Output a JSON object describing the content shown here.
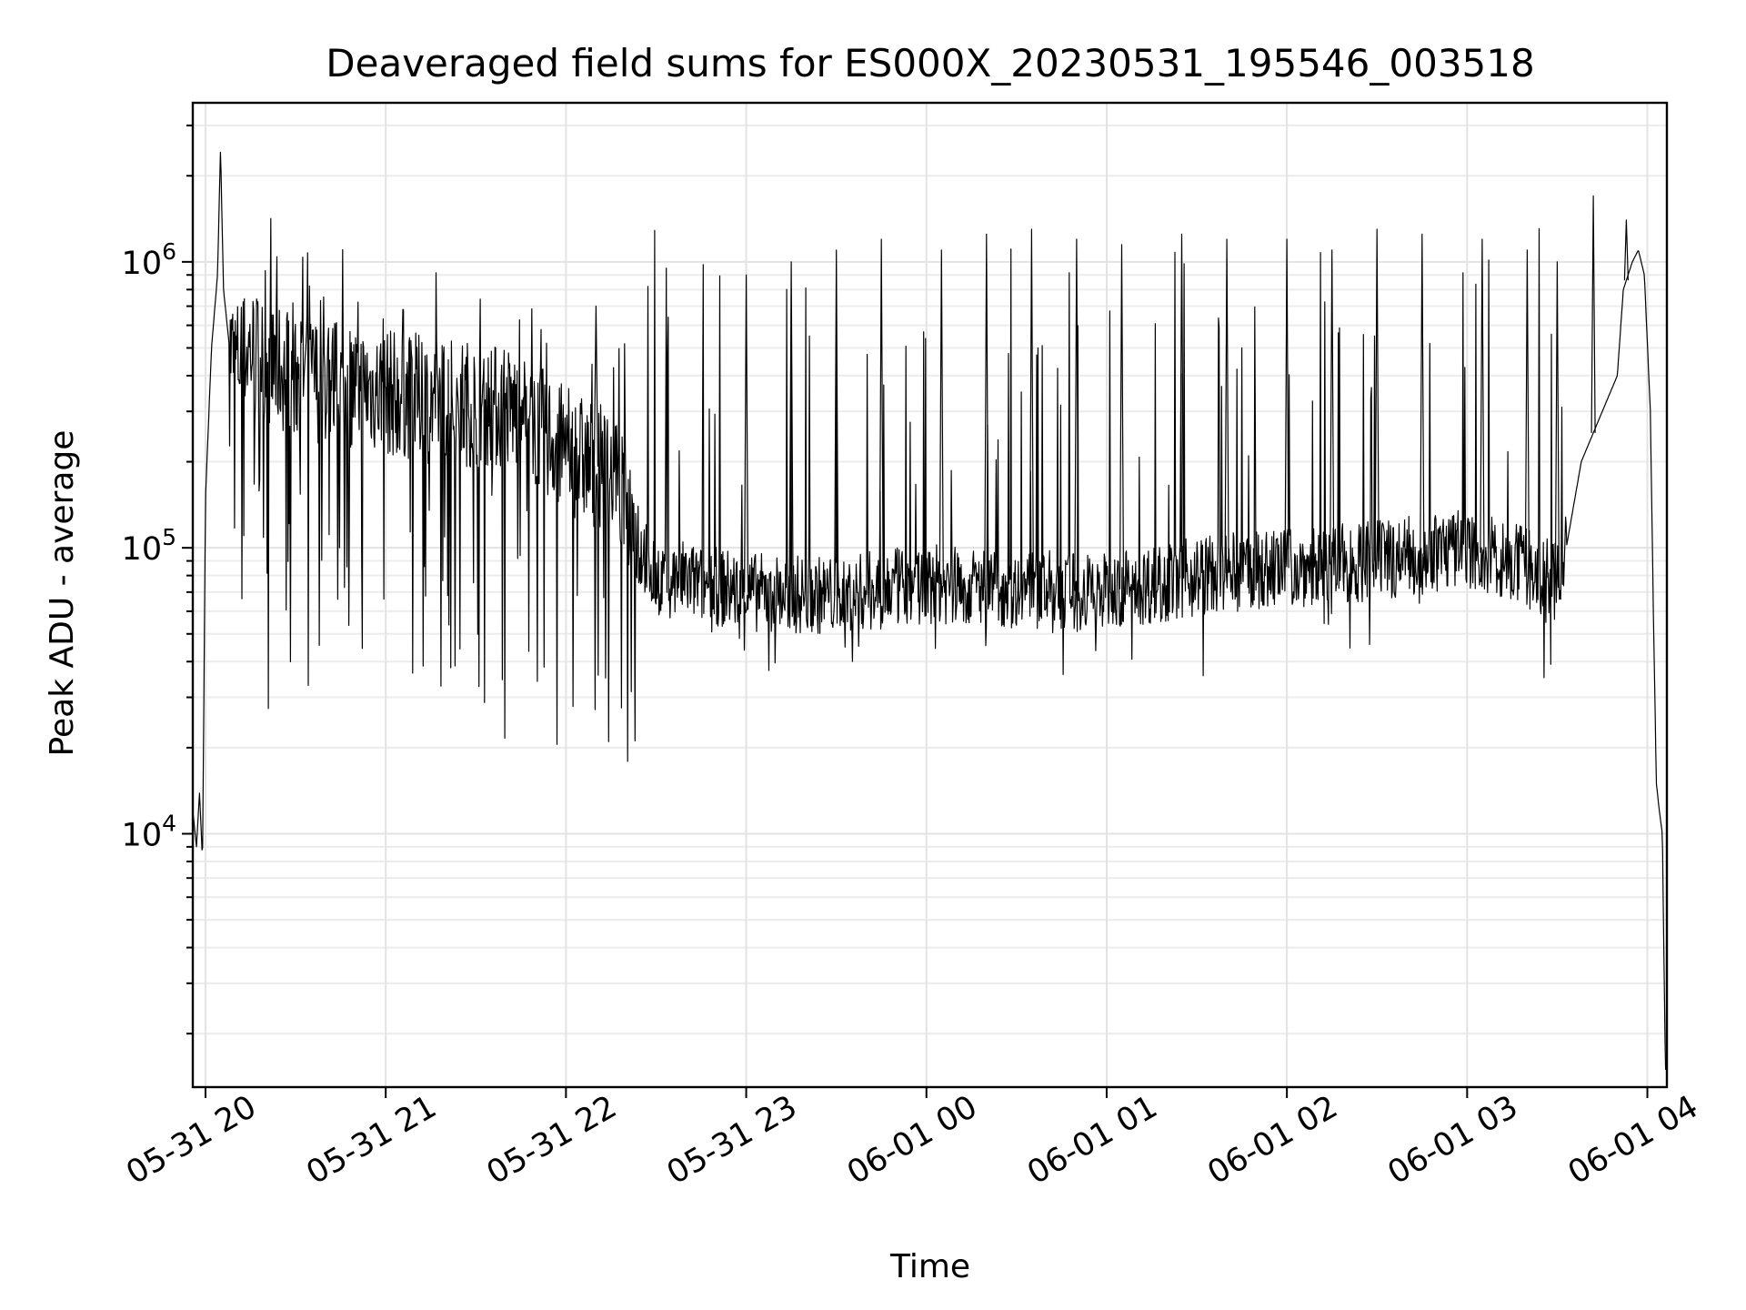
{
  "chart_data": {
    "type": "line",
    "title": "Deaveraged field sums for ES000X_20230531_195546_003518",
    "xlabel": "Time",
    "ylabel": "Peak ADU - average",
    "x_format": "MM-DD HH",
    "xlim": [
      "2023-05-31T19:55:46",
      "2023-06-01T04:06:30"
    ],
    "ylim": [
      1300,
      3600000
    ],
    "yscale": "log",
    "grid": "on (major and minor)",
    "legend": "none",
    "line_color": "#000000",
    "x_ticks": [
      {
        "value": "2023-05-31T20:00:00",
        "label": "05-31 20"
      },
      {
        "value": "2023-05-31T21:00:00",
        "label": "05-31 21"
      },
      {
        "value": "2023-05-31T22:00:00",
        "label": "05-31 22"
      },
      {
        "value": "2023-05-31T23:00:00",
        "label": "05-31 23"
      },
      {
        "value": "2023-06-01T00:00:00",
        "label": "06-01 00"
      },
      {
        "value": "2023-06-01T01:00:00",
        "label": "06-01 01"
      },
      {
        "value": "2023-06-01T02:00:00",
        "label": "06-01 02"
      },
      {
        "value": "2023-06-01T03:00:00",
        "label": "06-01 03"
      },
      {
        "value": "2023-06-01T04:00:00",
        "label": "06-01 04"
      }
    ],
    "y_ticks": [
      {
        "value": 10000,
        "base": "10",
        "exp": "4"
      },
      {
        "value": 100000,
        "base": "10",
        "exp": "5"
      },
      {
        "value": 1000000,
        "base": "10",
        "exp": "6"
      }
    ],
    "series": [
      {
        "style": "baseline with frequent upward spikes",
        "x": [
          "2023-05-31T19:55:46",
          "2023-05-31T19:57:00",
          "2023-05-31T19:58:00",
          "2023-05-31T19:59:00",
          "2023-05-31T20:00:00",
          "2023-05-31T20:02:00",
          "2023-05-31T20:04:00",
          "2023-05-31T20:05:00",
          "2023-05-31T20:06:00",
          "2023-05-31T20:08:00",
          "2023-05-31T20:10:00",
          "2023-05-31T20:15:00",
          "2023-05-31T20:20:00",
          "2023-05-31T20:30:00",
          "2023-05-31T20:45:00",
          "2023-05-31T21:00:00",
          "2023-05-31T21:15:00",
          "2023-05-31T21:30:00",
          "2023-05-31T21:45:00",
          "2023-05-31T22:00:00",
          "2023-05-31T22:15:00",
          "2023-05-31T22:20:00",
          "2023-05-31T22:25:00",
          "2023-05-31T22:30:00",
          "2023-05-31T22:45:00",
          "2023-05-31T23:00:00",
          "2023-05-31T23:30:00",
          "2023-06-01T00:00:00",
          "2023-06-01T00:30:00",
          "2023-06-01T01:00:00",
          "2023-06-01T01:30:00",
          "2023-06-01T02:00:00",
          "2023-06-01T02:30:00",
          "2023-06-01T03:00:00",
          "2023-06-01T03:20:00",
          "2023-06-01T03:30:00",
          "2023-06-01T03:33:00",
          "2023-06-01T03:38:00",
          "2023-06-01T03:45:00",
          "2023-06-01T03:50:00",
          "2023-06-01T03:52:00",
          "2023-06-01T03:55:00",
          "2023-06-01T03:57:00",
          "2023-06-01T03:59:00",
          "2023-06-01T04:01:00",
          "2023-06-01T04:02:00",
          "2023-06-01T04:03:00",
          "2023-06-01T04:04:00",
          "2023-06-01T04:05:00",
          "2023-06-01T04:06:00"
        ],
        "y": [
          12000,
          9000,
          14000,
          8000,
          150000,
          500000,
          900000,
          2500000,
          800000,
          500000,
          450000,
          500000,
          450000,
          400000,
          380000,
          350000,
          330000,
          320000,
          300000,
          220000,
          180000,
          150000,
          100000,
          80000,
          75000,
          70000,
          68000,
          75000,
          72000,
          70000,
          80000,
          85000,
          90000,
          100000,
          85000,
          75000,
          100000,
          200000,
          300000,
          400000,
          800000,
          1000000,
          1100000,
          900000,
          300000,
          60000,
          15000,
          12000,
          10000,
          1500
        ],
        "spike_peaks": [
          {
            "x": "2023-05-31T22:10:00",
            "y": 700000
          },
          {
            "x": "2023-05-31T23:00:00",
            "y": 900000
          },
          {
            "x": "2023-05-31T23:15:00",
            "y": 1000000
          },
          {
            "x": "2023-05-31T23:30:00",
            "y": 1100000
          },
          {
            "x": "2023-05-31T23:45:00",
            "y": 1200000
          },
          {
            "x": "2023-06-01T00:05:00",
            "y": 1100000
          },
          {
            "x": "2023-06-01T00:20:00",
            "y": 1250000
          },
          {
            "x": "2023-06-01T00:35:00",
            "y": 1300000
          },
          {
            "x": "2023-06-01T00:50:00",
            "y": 1200000
          },
          {
            "x": "2023-06-01T01:05:00",
            "y": 1150000
          },
          {
            "x": "2023-06-01T01:25:00",
            "y": 1250000
          },
          {
            "x": "2023-06-01T01:40:00",
            "y": 1200000
          },
          {
            "x": "2023-06-01T02:00:00",
            "y": 1200000
          },
          {
            "x": "2023-06-01T02:15:00",
            "y": 1100000
          },
          {
            "x": "2023-06-01T02:30:00",
            "y": 1300000
          },
          {
            "x": "2023-06-01T02:45:00",
            "y": 1250000
          },
          {
            "x": "2023-06-01T03:05:00",
            "y": 1200000
          },
          {
            "x": "2023-06-01T03:20:00",
            "y": 1100000
          },
          {
            "x": "2023-06-01T03:30:00",
            "y": 1000000
          },
          {
            "x": "2023-06-01T03:42:00",
            "y": 1700000
          },
          {
            "x": "2023-06-01T03:53:00",
            "y": 1400000
          }
        ]
      }
    ]
  }
}
